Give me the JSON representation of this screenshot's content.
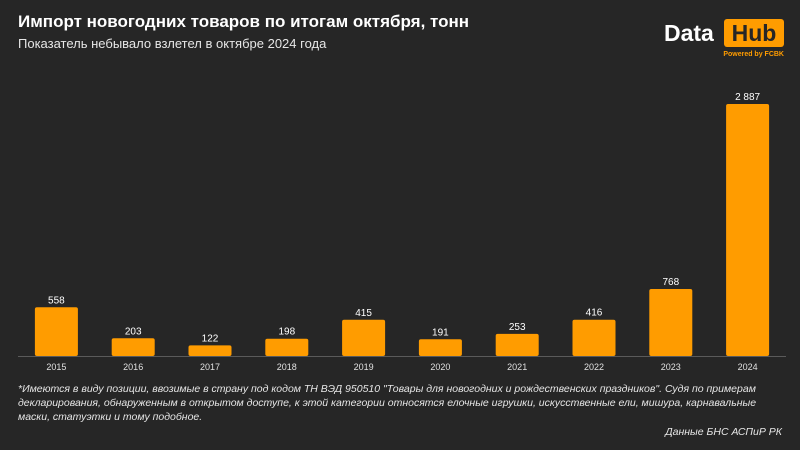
{
  "header": {
    "title": "Импорт новогодних товаров по итогам октября, тонн",
    "subtitle": "Показатель небывало взлетел в октябре 2024 года"
  },
  "logo": {
    "data_text": "Data",
    "hub_text": "Hub",
    "powered_text": "Powered by FCBK"
  },
  "colors": {
    "background": "#262626",
    "bar": "#ff9c00",
    "text": "#ffffff"
  },
  "chart_data": {
    "type": "bar",
    "title": "Импорт новогодних товаров по итогам октября, тонн",
    "subtitle": "Показатель небывало взлетел в октябре 2024 года",
    "categories": [
      "2015",
      "2016",
      "2017",
      "2018",
      "2019",
      "2020",
      "2021",
      "2022",
      "2023",
      "2024"
    ],
    "values": [
      558,
      203,
      122,
      198,
      415,
      191,
      253,
      416,
      768,
      2887
    ],
    "value_labels": [
      "558",
      "203",
      "122",
      "198",
      "415",
      "191",
      "253",
      "416",
      "768",
      "2 887"
    ],
    "xlabel": "",
    "ylabel": "",
    "ylim": [
      0,
      2887
    ],
    "grid": false,
    "legend": "none"
  },
  "footnote": "*Имеются в виду позиции, ввозимые в страну под кодом ТН ВЭД 950510 \"Товары для новогодних и рождественских праздников\". Судя по примерам декларирования, обнаруженным в открытом доступе, к этой категории относятся елочные игрушки, искусственные ели, мишура, карнавальные маски, статуэтки и тому подобное.",
  "source": "Данные БНС АСПиР РК"
}
